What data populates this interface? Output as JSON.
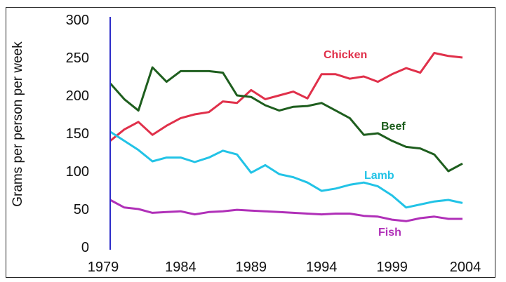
{
  "chart_data": {
    "type": "line",
    "title": "",
    "xlabel": "",
    "ylabel": "Grams per person per week",
    "xlim": [
      1979,
      2004
    ],
    "ylim": [
      0,
      300
    ],
    "x_ticks": [
      "1979",
      "1984",
      "1989",
      "1994",
      "1999",
      "2004"
    ],
    "y_ticks": [
      "0",
      "50",
      "100",
      "150",
      "200",
      "250",
      "300"
    ],
    "grid": false,
    "legend": "inline labels",
    "x": [
      1979,
      1980,
      1981,
      1982,
      1983,
      1984,
      1985,
      1986,
      1987,
      1988,
      1989,
      1990,
      1991,
      1992,
      1993,
      1994,
      1995,
      1996,
      1997,
      1998,
      1999,
      2000,
      2001,
      2002,
      2003,
      2004
    ],
    "series": [
      {
        "name": "Chicken",
        "color": "#e0304a",
        "values": [
          140,
          155,
          165,
          148,
          160,
          170,
          175,
          178,
          192,
          190,
          207,
          195,
          200,
          205,
          196,
          228,
          228,
          222,
          225,
          218,
          228,
          236,
          230,
          256,
          252,
          250
        ]
      },
      {
        "name": "Beef",
        "color": "#1e5e1e",
        "values": [
          216,
          195,
          180,
          237,
          218,
          232,
          232,
          232,
          230,
          200,
          198,
          187,
          180,
          185,
          186,
          190,
          180,
          170,
          148,
          150,
          140,
          132,
          130,
          122,
          100,
          110
        ]
      },
      {
        "name": "Lamb",
        "color": "#22c3e6",
        "values": [
          152,
          140,
          128,
          113,
          118,
          118,
          112,
          118,
          127,
          122,
          98,
          108,
          96,
          92,
          85,
          74,
          77,
          82,
          85,
          80,
          68,
          52,
          56,
          60,
          62,
          58
        ]
      },
      {
        "name": "Fish",
        "color": "#b030b8",
        "values": [
          62,
          52,
          50,
          45,
          46,
          47,
          43,
          46,
          47,
          49,
          48,
          47,
          46,
          45,
          44,
          43,
          44,
          44,
          41,
          40,
          36,
          34,
          38,
          40,
          37,
          37
        ]
      }
    ]
  }
}
